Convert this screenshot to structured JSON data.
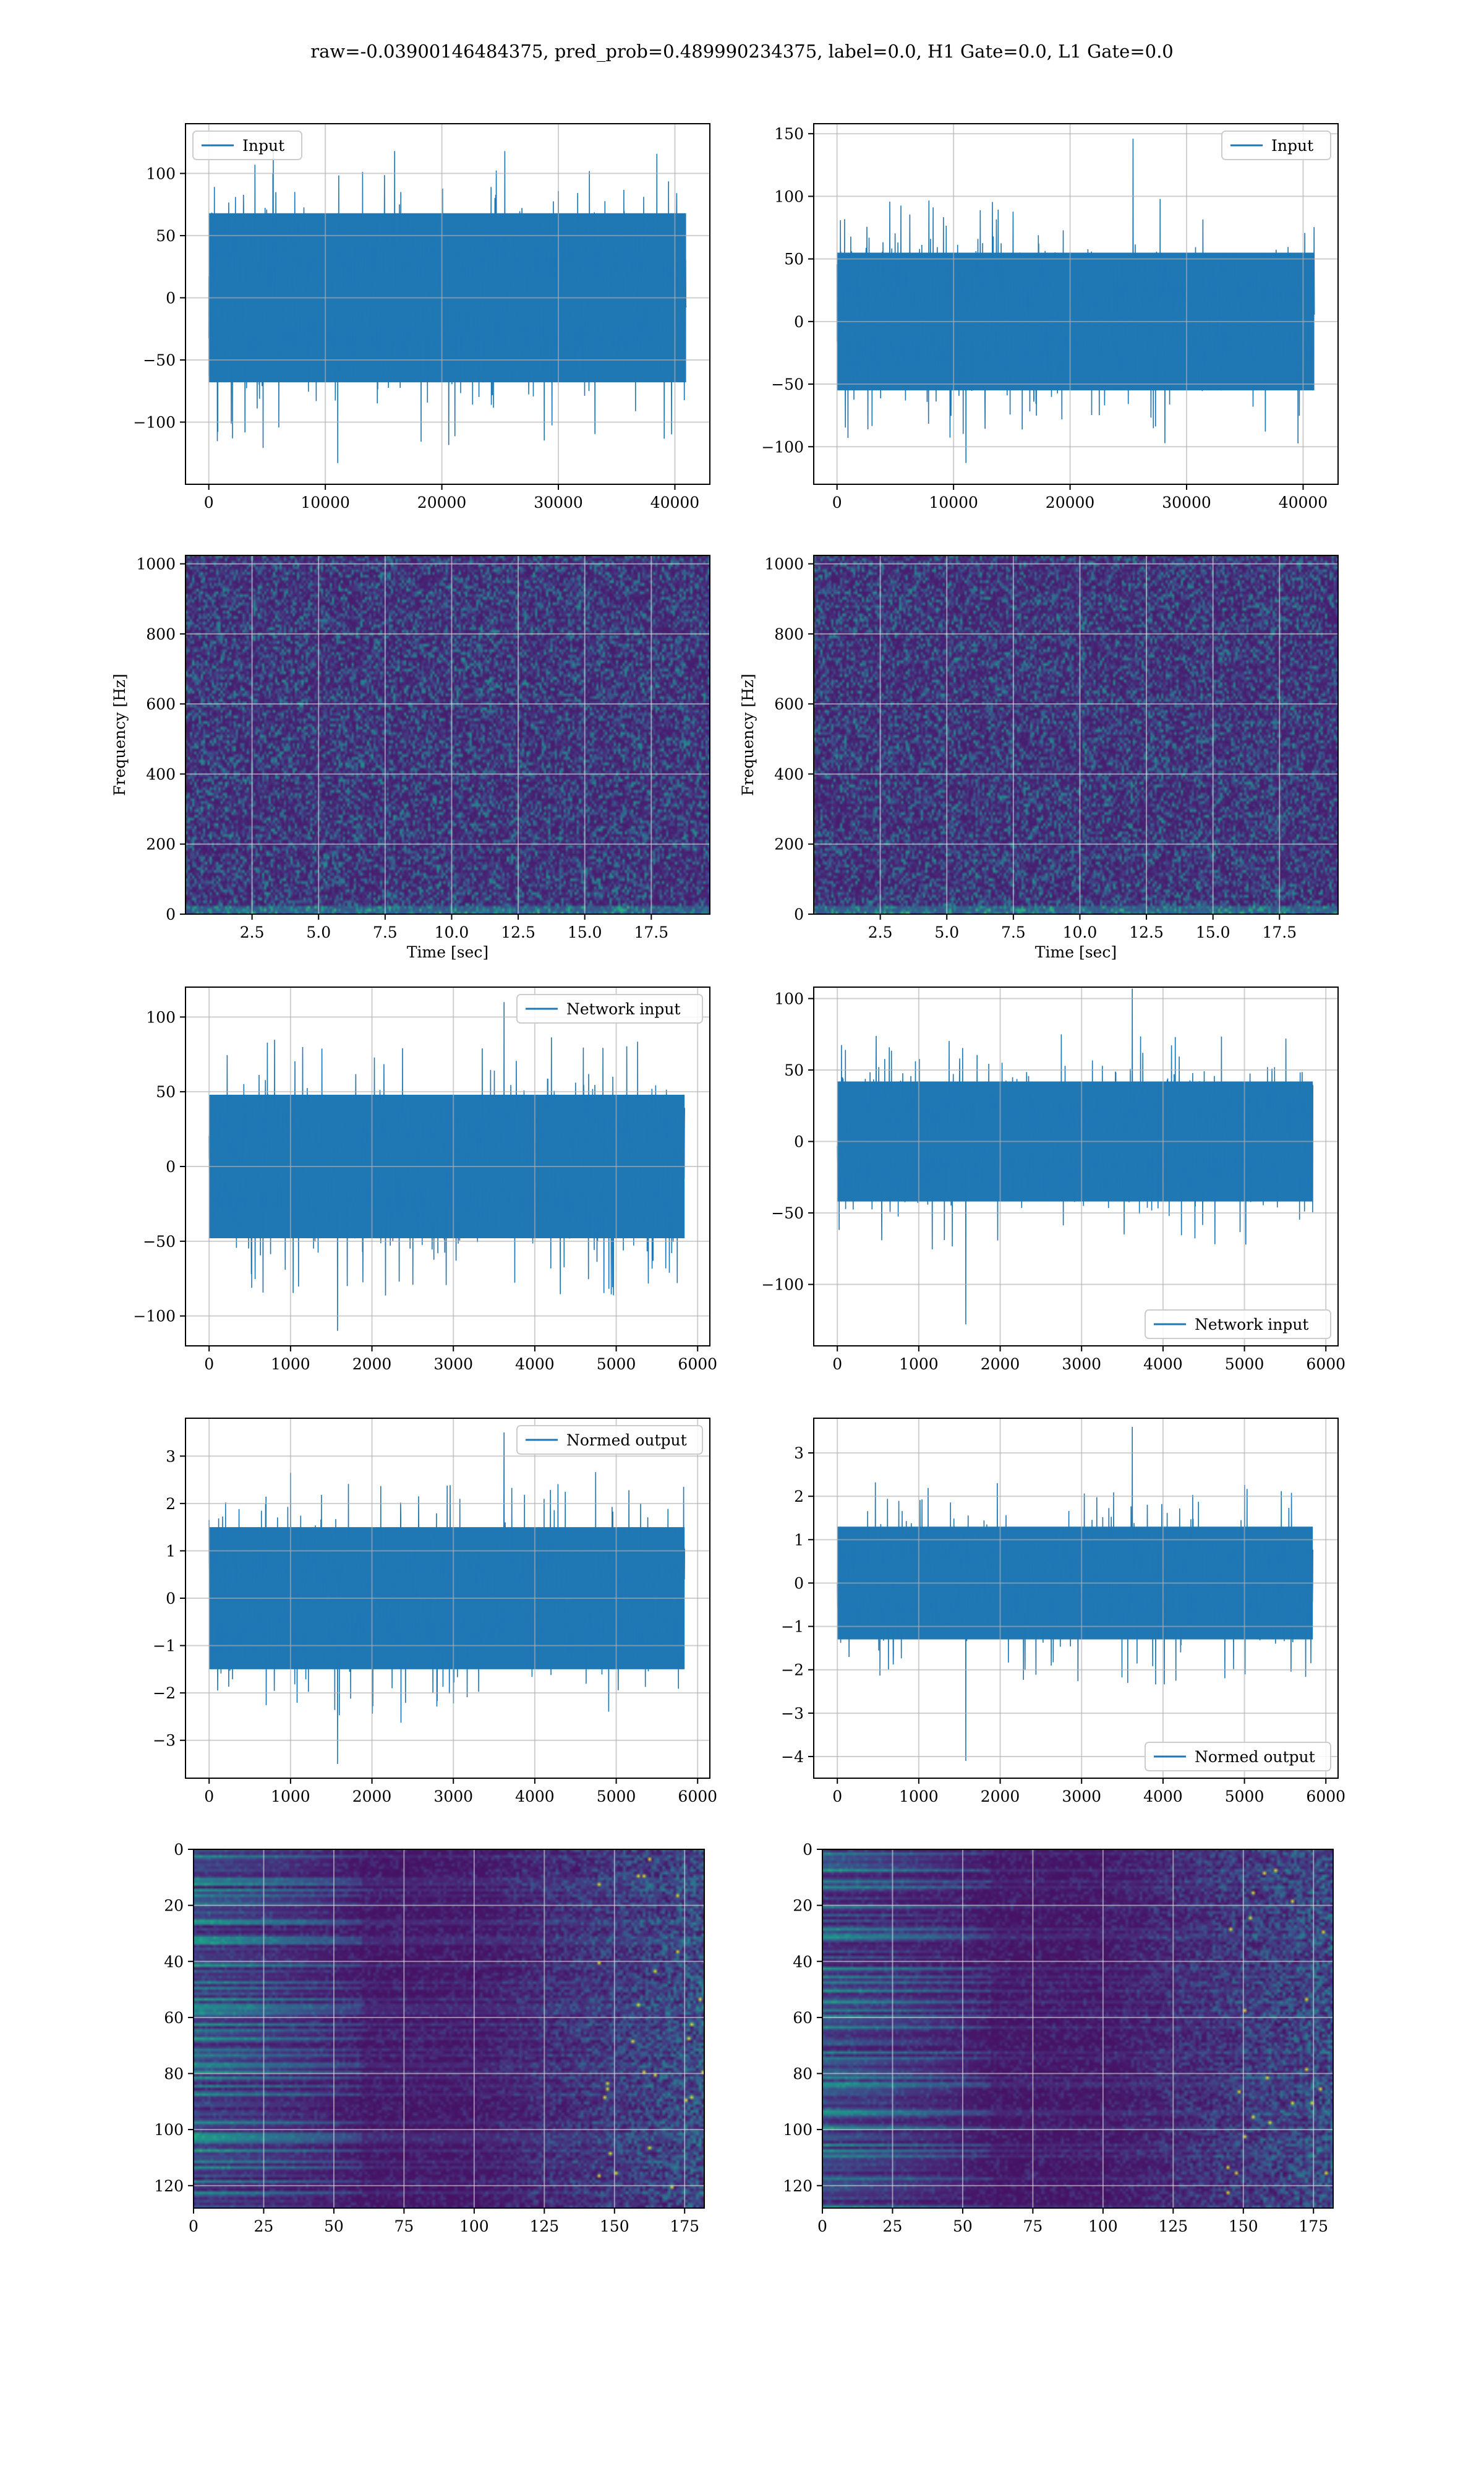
{
  "suptitle": "raw=-0.03900146484375, pred_prob=0.489990234375, label=0.0, H1 Gate=0.0, L1 Gate=0.0",
  "colors": {
    "line": "#1f77b4",
    "grid": "#b0b0b0",
    "viridis_low": "#440154",
    "viridis_high": "#fde725"
  },
  "chart_data": [
    {
      "id": "input-h1",
      "type": "line",
      "legend": "Input",
      "legend_loc": "upper left",
      "xlim": [
        -2000,
        43000
      ],
      "ylim": [
        -150,
        140
      ],
      "xticks": [
        0,
        10000,
        20000,
        30000,
        40000
      ],
      "yticks": [
        -100,
        -50,
        0,
        50,
        100
      ],
      "n_samples": 40960,
      "x_range": [
        0,
        40960
      ],
      "core_amplitude": 68,
      "peak_max": 118,
      "peak_min": -133,
      "grid": true
    },
    {
      "id": "input-l1",
      "type": "line",
      "legend": "Input",
      "legend_loc": "upper right",
      "xlim": [
        -2000,
        43000
      ],
      "ylim": [
        -130,
        158
      ],
      "xticks": [
        0,
        10000,
        20000,
        30000,
        40000
      ],
      "yticks": [
        -100,
        -50,
        0,
        50,
        100,
        150
      ],
      "n_samples": 40960,
      "x_range": [
        0,
        40960
      ],
      "core_amplitude": 55,
      "peak_max": 146,
      "peak_min": -113,
      "grid": true
    },
    {
      "id": "spectrogram-h1",
      "type": "heatmap",
      "xlabel": "Time [sec]",
      "ylabel": "Frequency [Hz]",
      "xlim": [
        0,
        19.7
      ],
      "ylim": [
        0,
        1024
      ],
      "xticks": [
        2.5,
        5,
        7.5,
        10,
        12.5,
        15,
        17.5
      ],
      "xtick_labels": [
        "2.5",
        "5.0",
        "7.5",
        "10.0",
        "12.5",
        "15.0",
        "17.5"
      ],
      "yticks": [
        0,
        200,
        400,
        600,
        800,
        1000
      ],
      "colormap": "viridis",
      "grid": true
    },
    {
      "id": "spectrogram-l1",
      "type": "heatmap",
      "xlabel": "Time [sec]",
      "ylabel": "Frequency [Hz]",
      "xlim": [
        0,
        19.7
      ],
      "ylim": [
        0,
        1024
      ],
      "xticks": [
        2.5,
        5,
        7.5,
        10,
        12.5,
        15,
        17.5
      ],
      "xtick_labels": [
        "2.5",
        "5.0",
        "7.5",
        "10.0",
        "12.5",
        "15.0",
        "17.5"
      ],
      "yticks": [
        0,
        200,
        400,
        600,
        800,
        1000
      ],
      "colormap": "viridis",
      "grid": true
    },
    {
      "id": "network-input-h1",
      "type": "line",
      "legend": "Network input",
      "legend_loc": "upper right",
      "xlim": [
        -290,
        6150
      ],
      "ylim": [
        -120,
        120
      ],
      "xticks": [
        0,
        1000,
        2000,
        3000,
        4000,
        5000,
        6000
      ],
      "yticks": [
        -100,
        -50,
        0,
        50,
        100
      ],
      "n_samples": 5840,
      "x_range": [
        0,
        5840
      ],
      "core_amplitude": 48,
      "peak_max": 110,
      "peak_min": -110,
      "grid": true
    },
    {
      "id": "network-input-l1",
      "type": "line",
      "legend": "Network input",
      "legend_loc": "lower right",
      "xlim": [
        -290,
        6150
      ],
      "ylim": [
        -143,
        108
      ],
      "xticks": [
        0,
        1000,
        2000,
        3000,
        4000,
        5000,
        6000
      ],
      "yticks": [
        -100,
        -50,
        0,
        50,
        100
      ],
      "n_samples": 5840,
      "x_range": [
        0,
        5840
      ],
      "core_amplitude": 42,
      "peak_max": 107,
      "peak_min": -128,
      "grid": true
    },
    {
      "id": "normed-output-h1",
      "type": "line",
      "legend": "Normed output",
      "legend_loc": "upper right",
      "xlim": [
        -290,
        6150
      ],
      "ylim": [
        -3.8,
        3.8
      ],
      "xticks": [
        0,
        1000,
        2000,
        3000,
        4000,
        5000,
        6000
      ],
      "yticks": [
        -3,
        -2,
        -1,
        0,
        1,
        2,
        3
      ],
      "n_samples": 5840,
      "x_range": [
        0,
        5840
      ],
      "core_amplitude": 1.5,
      "peak_max": 3.5,
      "peak_min": -3.5,
      "grid": true
    },
    {
      "id": "normed-output-l1",
      "type": "line",
      "legend": "Normed output",
      "legend_loc": "lower right",
      "xlim": [
        -290,
        6150
      ],
      "ylim": [
        -4.5,
        3.8
      ],
      "xticks": [
        0,
        1000,
        2000,
        3000,
        4000,
        5000,
        6000
      ],
      "yticks": [
        -4,
        -3,
        -2,
        -1,
        0,
        1,
        2,
        3
      ],
      "n_samples": 5840,
      "x_range": [
        0,
        5840
      ],
      "core_amplitude": 1.3,
      "peak_max": 3.6,
      "peak_min": -4.1,
      "grid": true
    },
    {
      "id": "feature-map-h1",
      "type": "heatmap",
      "xlim": [
        0,
        182
      ],
      "ylim": [
        128,
        0
      ],
      "xticks": [
        0,
        25,
        50,
        75,
        100,
        125,
        150,
        175
      ],
      "yticks": [
        0,
        20,
        40,
        60,
        80,
        100,
        120
      ],
      "colormap": "viridis",
      "grid": true
    },
    {
      "id": "feature-map-l1",
      "type": "heatmap",
      "xlim": [
        0,
        182
      ],
      "ylim": [
        128,
        0
      ],
      "xticks": [
        0,
        25,
        50,
        75,
        100,
        125,
        150,
        175
      ],
      "yticks": [
        0,
        20,
        40,
        60,
        80,
        100,
        120
      ],
      "colormap": "viridis",
      "grid": true
    }
  ]
}
